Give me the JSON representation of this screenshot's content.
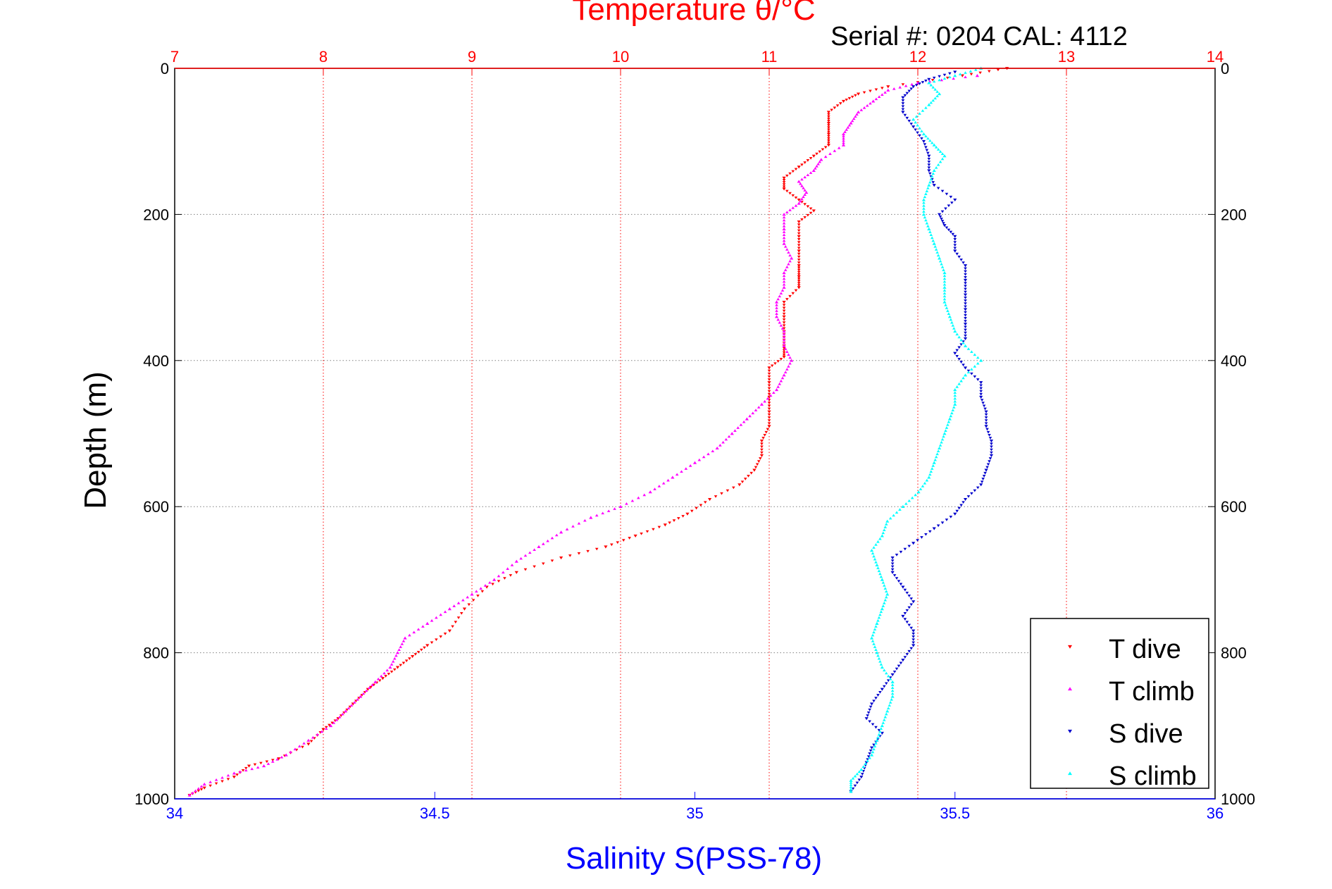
{
  "chart_data": {
    "type": "scatter",
    "title": "Temperature θ/°C",
    "subtitle": "Serial #: 0204  CAL: 4112",
    "xlabel_top": "Temperature θ/°C",
    "xlabel_bottom": "Salinity S(PSS-78)",
    "ylabel": "Depth (m)",
    "x_top_range": [
      7,
      14
    ],
    "x_top_ticks": [
      "7",
      "8",
      "9",
      "10",
      "11",
      "12",
      "13",
      "14"
    ],
    "x_bottom_range": [
      34,
      36
    ],
    "x_bottom_ticks": [
      "34",
      "34.5",
      "35",
      "35.5",
      "36"
    ],
    "y_range": [
      0,
      1000
    ],
    "y_reversed": true,
    "y_ticks": [
      "0",
      "200",
      "400",
      "600",
      "800",
      "1000"
    ],
    "grid": true,
    "legend_position": "bottom-right",
    "colors": {
      "temperature_axis": "#ff0000",
      "salinity_axis": "#0000ff",
      "t_dive": "#ff0000",
      "t_climb": "#ff00ff",
      "s_dive": "#0000cc",
      "s_climb": "#00ffff",
      "grid": "#808080"
    },
    "series": [
      {
        "name": "T dive",
        "axis": "temperature",
        "marker": "triangle-down",
        "color": "#ff0000",
        "points": [
          [
            12.6,
            0
          ],
          [
            12.3,
            10
          ],
          [
            11.8,
            25
          ],
          [
            11.6,
            35
          ],
          [
            11.5,
            45
          ],
          [
            11.4,
            60
          ],
          [
            11.4,
            75
          ],
          [
            11.4,
            90
          ],
          [
            11.4,
            105
          ],
          [
            11.3,
            120
          ],
          [
            11.2,
            135
          ],
          [
            11.1,
            150
          ],
          [
            11.1,
            165
          ],
          [
            11.2,
            180
          ],
          [
            11.3,
            195
          ],
          [
            11.2,
            210
          ],
          [
            11.2,
            230
          ],
          [
            11.2,
            250
          ],
          [
            11.2,
            270
          ],
          [
            11.2,
            285
          ],
          [
            11.2,
            300
          ],
          [
            11.1,
            320
          ],
          [
            11.1,
            340
          ],
          [
            11.1,
            360
          ],
          [
            11.1,
            380
          ],
          [
            11.1,
            395
          ],
          [
            11.0,
            410
          ],
          [
            11.0,
            430
          ],
          [
            11.0,
            450
          ],
          [
            11.0,
            470
          ],
          [
            11.0,
            490
          ],
          [
            10.95,
            510
          ],
          [
            10.95,
            530
          ],
          [
            10.9,
            550
          ],
          [
            10.8,
            570
          ],
          [
            10.6,
            590
          ],
          [
            10.45,
            610
          ],
          [
            10.3,
            625
          ],
          [
            10.1,
            640
          ],
          [
            9.9,
            655
          ],
          [
            9.6,
            670
          ],
          [
            9.3,
            690
          ],
          [
            9.1,
            710
          ],
          [
            8.95,
            740
          ],
          [
            8.85,
            770
          ],
          [
            8.7,
            790
          ],
          [
            8.6,
            805
          ],
          [
            8.5,
            820
          ],
          [
            8.4,
            835
          ],
          [
            8.3,
            850
          ],
          [
            8.2,
            870
          ],
          [
            8.1,
            890
          ],
          [
            8.0,
            905
          ],
          [
            7.9,
            925
          ],
          [
            7.7,
            945
          ],
          [
            7.5,
            955
          ],
          [
            7.4,
            970
          ],
          [
            7.2,
            985
          ],
          [
            7.1,
            995
          ]
        ]
      },
      {
        "name": "T climb",
        "axis": "temperature",
        "marker": "triangle-up",
        "color": "#ff00ff",
        "points": [
          [
            12.4,
            10
          ],
          [
            12.0,
            20
          ],
          [
            11.8,
            30
          ],
          [
            11.7,
            45
          ],
          [
            11.6,
            60
          ],
          [
            11.55,
            75
          ],
          [
            11.5,
            90
          ],
          [
            11.5,
            105
          ],
          [
            11.35,
            125
          ],
          [
            11.3,
            140
          ],
          [
            11.2,
            155
          ],
          [
            11.25,
            170
          ],
          [
            11.2,
            185
          ],
          [
            11.1,
            200
          ],
          [
            11.1,
            220
          ],
          [
            11.1,
            240
          ],
          [
            11.15,
            260
          ],
          [
            11.1,
            280
          ],
          [
            11.1,
            300
          ],
          [
            11.05,
            320
          ],
          [
            11.05,
            340
          ],
          [
            11.1,
            360
          ],
          [
            11.1,
            380
          ],
          [
            11.15,
            400
          ],
          [
            11.1,
            420
          ],
          [
            11.05,
            440
          ],
          [
            10.95,
            460
          ],
          [
            10.85,
            480
          ],
          [
            10.75,
            500
          ],
          [
            10.65,
            520
          ],
          [
            10.5,
            540
          ],
          [
            10.35,
            560
          ],
          [
            10.2,
            580
          ],
          [
            10.0,
            600
          ],
          [
            9.8,
            615
          ],
          [
            9.6,
            635
          ],
          [
            9.45,
            655
          ],
          [
            9.3,
            675
          ],
          [
            9.15,
            700
          ],
          [
            9.0,
            720
          ],
          [
            8.85,
            740
          ],
          [
            8.7,
            760
          ],
          [
            8.55,
            780
          ],
          [
            8.5,
            800
          ],
          [
            8.45,
            820
          ],
          [
            8.35,
            840
          ],
          [
            8.25,
            860
          ],
          [
            8.15,
            880
          ],
          [
            8.05,
            900
          ],
          [
            7.9,
            920
          ],
          [
            7.75,
            940
          ],
          [
            7.6,
            955
          ],
          [
            7.4,
            965
          ],
          [
            7.2,
            980
          ],
          [
            7.1,
            995
          ]
        ]
      },
      {
        "name": "S dive",
        "axis": "salinity",
        "marker": "triangle-down",
        "color": "#0000cc",
        "points": [
          [
            35.5,
            5
          ],
          [
            35.45,
            15
          ],
          [
            35.42,
            25
          ],
          [
            35.4,
            40
          ],
          [
            35.4,
            60
          ],
          [
            35.42,
            80
          ],
          [
            35.44,
            100
          ],
          [
            35.45,
            120
          ],
          [
            35.45,
            140
          ],
          [
            35.46,
            160
          ],
          [
            35.5,
            180
          ],
          [
            35.47,
            200
          ],
          [
            35.48,
            215
          ],
          [
            35.5,
            230
          ],
          [
            35.5,
            250
          ],
          [
            35.52,
            270
          ],
          [
            35.52,
            290
          ],
          [
            35.52,
            310
          ],
          [
            35.52,
            330
          ],
          [
            35.52,
            350
          ],
          [
            35.52,
            370
          ],
          [
            35.5,
            390
          ],
          [
            35.52,
            410
          ],
          [
            35.55,
            430
          ],
          [
            35.55,
            450
          ],
          [
            35.56,
            470
          ],
          [
            35.56,
            490
          ],
          [
            35.57,
            510
          ],
          [
            35.57,
            530
          ],
          [
            35.56,
            550
          ],
          [
            35.55,
            570
          ],
          [
            35.52,
            590
          ],
          [
            35.5,
            610
          ],
          [
            35.46,
            630
          ],
          [
            35.42,
            650
          ],
          [
            35.38,
            670
          ],
          [
            35.38,
            690
          ],
          [
            35.4,
            710
          ],
          [
            35.42,
            730
          ],
          [
            35.4,
            750
          ],
          [
            35.42,
            770
          ],
          [
            35.42,
            790
          ],
          [
            35.4,
            810
          ],
          [
            35.38,
            830
          ],
          [
            35.36,
            850
          ],
          [
            35.34,
            870
          ],
          [
            35.33,
            890
          ],
          [
            35.36,
            910
          ],
          [
            35.34,
            930
          ],
          [
            35.33,
            950
          ],
          [
            35.32,
            970
          ],
          [
            35.3,
            990
          ]
        ]
      },
      {
        "name": "S climb",
        "axis": "salinity",
        "marker": "triangle-up",
        "color": "#00ffff",
        "points": [
          [
            35.55,
            0
          ],
          [
            35.5,
            10
          ],
          [
            35.45,
            20
          ],
          [
            35.47,
            35
          ],
          [
            35.45,
            50
          ],
          [
            35.42,
            70
          ],
          [
            35.44,
            90
          ],
          [
            35.46,
            105
          ],
          [
            35.48,
            120
          ],
          [
            35.46,
            140
          ],
          [
            35.45,
            160
          ],
          [
            35.44,
            180
          ],
          [
            35.44,
            200
          ],
          [
            35.45,
            220
          ],
          [
            35.46,
            240
          ],
          [
            35.47,
            260
          ],
          [
            35.48,
            280
          ],
          [
            35.48,
            300
          ],
          [
            35.48,
            320
          ],
          [
            35.49,
            340
          ],
          [
            35.5,
            360
          ],
          [
            35.52,
            380
          ],
          [
            35.55,
            400
          ],
          [
            35.52,
            420
          ],
          [
            35.5,
            440
          ],
          [
            35.5,
            460
          ],
          [
            35.49,
            480
          ],
          [
            35.48,
            500
          ],
          [
            35.47,
            520
          ],
          [
            35.46,
            540
          ],
          [
            35.45,
            560
          ],
          [
            35.43,
            580
          ],
          [
            35.4,
            600
          ],
          [
            35.37,
            620
          ],
          [
            35.36,
            640
          ],
          [
            35.34,
            660
          ],
          [
            35.35,
            680
          ],
          [
            35.36,
            700
          ],
          [
            35.37,
            720
          ],
          [
            35.36,
            740
          ],
          [
            35.35,
            760
          ],
          [
            35.34,
            780
          ],
          [
            35.35,
            800
          ],
          [
            35.36,
            820
          ],
          [
            35.38,
            840
          ],
          [
            35.38,
            860
          ],
          [
            35.37,
            880
          ],
          [
            35.36,
            900
          ],
          [
            35.35,
            920
          ],
          [
            35.34,
            940
          ],
          [
            35.32,
            960
          ],
          [
            35.3,
            975
          ],
          [
            35.3,
            990
          ]
        ]
      }
    ]
  }
}
